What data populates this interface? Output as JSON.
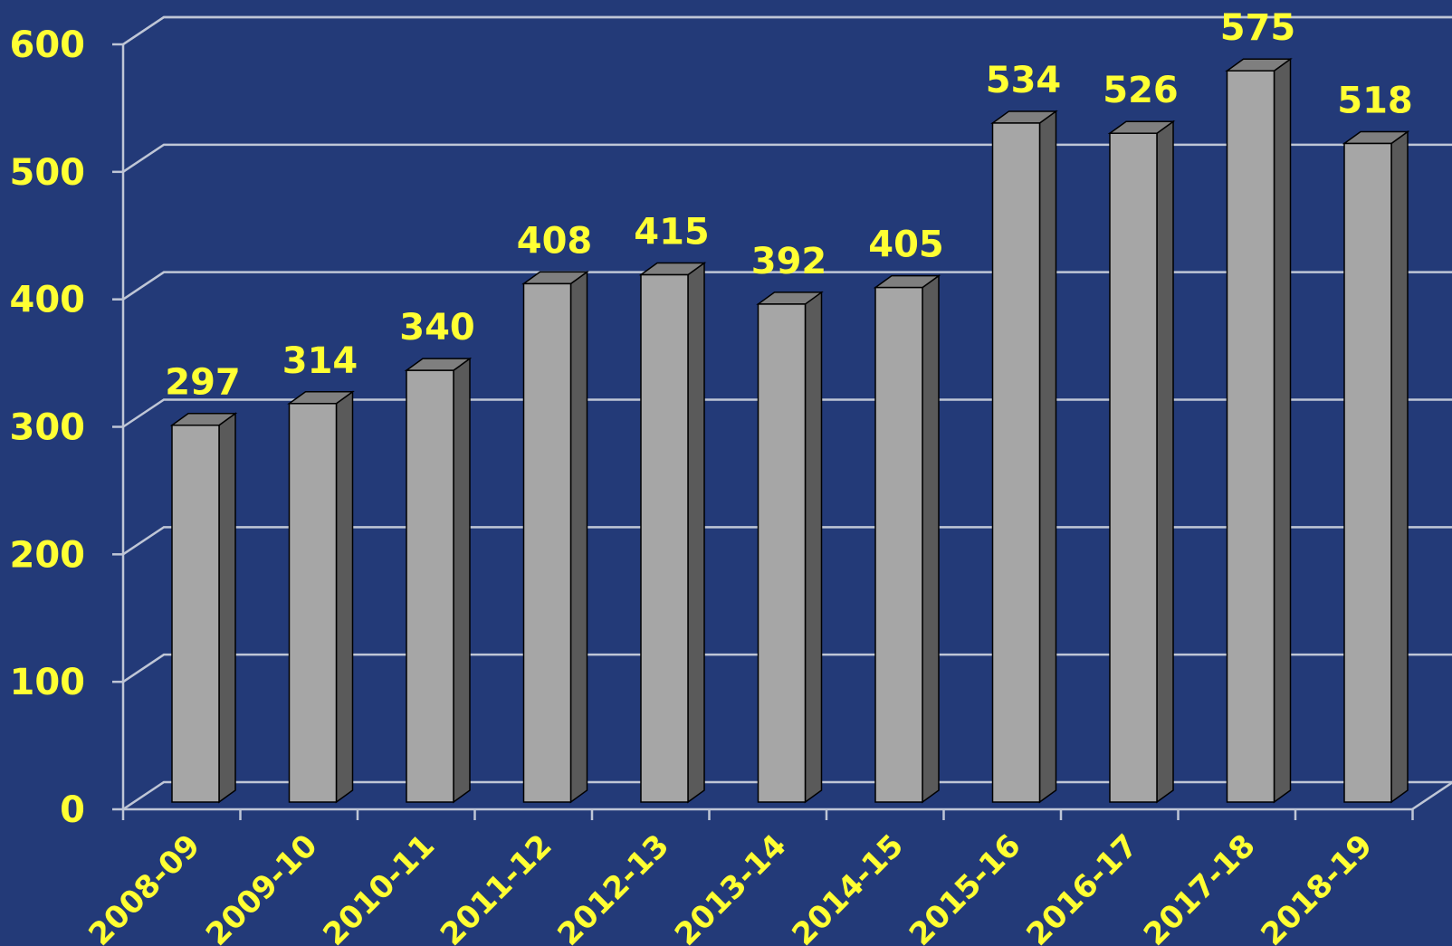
{
  "chart_data": {
    "type": "bar",
    "title": "",
    "xlabel": "",
    "ylabel": "",
    "categories": [
      "2008-09",
      "2009-10",
      "2010-11",
      "2011-12",
      "2012-13",
      "2013-14",
      "2014-15",
      "2015-16",
      "2016-17",
      "2017-18",
      "2018-19"
    ],
    "values": [
      297,
      314,
      340,
      408,
      415,
      392,
      405,
      534,
      526,
      575,
      518
    ],
    "ylim": [
      0,
      600
    ],
    "yticks": [
      0,
      100,
      200,
      300,
      400,
      500,
      600
    ],
    "grid": true,
    "three_d": true,
    "colors": {
      "background": "#233A78",
      "bar_front": "#A6A6A6",
      "bar_side": "#5A5A5A",
      "bar_top": "#7F7F7F",
      "bar_outline": "#000000",
      "text": "#FFFF33",
      "grid": "#BFC6D6"
    }
  }
}
